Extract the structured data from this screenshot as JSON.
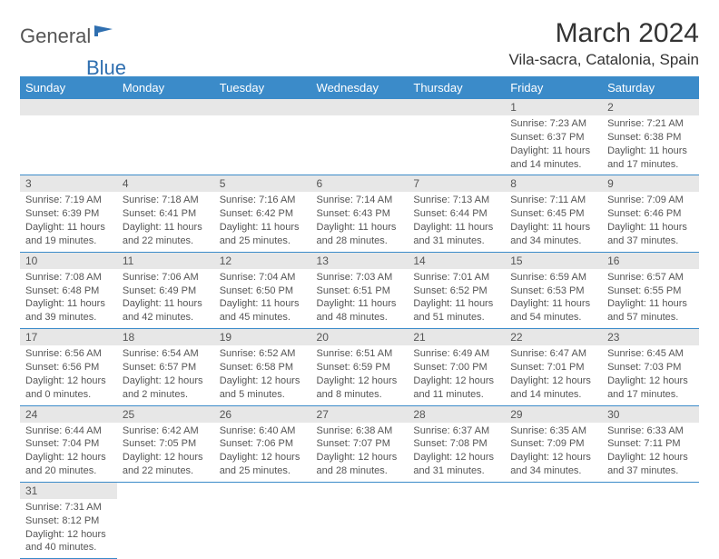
{
  "logo": {
    "part1": "General",
    "part2": "Blue"
  },
  "title": "March 2024",
  "location": "Vila-sacra, Catalonia, Spain",
  "colors": {
    "header_bg": "#3b8bc9",
    "header_text": "#ffffff",
    "daynum_bg": "#e7e7e7",
    "row_border": "#3b8bc9",
    "logo_blue": "#2f6fb0",
    "text": "#555555"
  },
  "day_headers": [
    "Sunday",
    "Monday",
    "Tuesday",
    "Wednesday",
    "Thursday",
    "Friday",
    "Saturday"
  ],
  "weeks": [
    [
      null,
      null,
      null,
      null,
      null,
      {
        "n": "1",
        "sr": "7:23 AM",
        "ss": "6:37 PM",
        "dl": "11 hours and 14 minutes."
      },
      {
        "n": "2",
        "sr": "7:21 AM",
        "ss": "6:38 PM",
        "dl": "11 hours and 17 minutes."
      }
    ],
    [
      {
        "n": "3",
        "sr": "7:19 AM",
        "ss": "6:39 PM",
        "dl": "11 hours and 19 minutes."
      },
      {
        "n": "4",
        "sr": "7:18 AM",
        "ss": "6:41 PM",
        "dl": "11 hours and 22 minutes."
      },
      {
        "n": "5",
        "sr": "7:16 AM",
        "ss": "6:42 PM",
        "dl": "11 hours and 25 minutes."
      },
      {
        "n": "6",
        "sr": "7:14 AM",
        "ss": "6:43 PM",
        "dl": "11 hours and 28 minutes."
      },
      {
        "n": "7",
        "sr": "7:13 AM",
        "ss": "6:44 PM",
        "dl": "11 hours and 31 minutes."
      },
      {
        "n": "8",
        "sr": "7:11 AM",
        "ss": "6:45 PM",
        "dl": "11 hours and 34 minutes."
      },
      {
        "n": "9",
        "sr": "7:09 AM",
        "ss": "6:46 PM",
        "dl": "11 hours and 37 minutes."
      }
    ],
    [
      {
        "n": "10",
        "sr": "7:08 AM",
        "ss": "6:48 PM",
        "dl": "11 hours and 39 minutes."
      },
      {
        "n": "11",
        "sr": "7:06 AM",
        "ss": "6:49 PM",
        "dl": "11 hours and 42 minutes."
      },
      {
        "n": "12",
        "sr": "7:04 AM",
        "ss": "6:50 PM",
        "dl": "11 hours and 45 minutes."
      },
      {
        "n": "13",
        "sr": "7:03 AM",
        "ss": "6:51 PM",
        "dl": "11 hours and 48 minutes."
      },
      {
        "n": "14",
        "sr": "7:01 AM",
        "ss": "6:52 PM",
        "dl": "11 hours and 51 minutes."
      },
      {
        "n": "15",
        "sr": "6:59 AM",
        "ss": "6:53 PM",
        "dl": "11 hours and 54 minutes."
      },
      {
        "n": "16",
        "sr": "6:57 AM",
        "ss": "6:55 PM",
        "dl": "11 hours and 57 minutes."
      }
    ],
    [
      {
        "n": "17",
        "sr": "6:56 AM",
        "ss": "6:56 PM",
        "dl": "12 hours and 0 minutes."
      },
      {
        "n": "18",
        "sr": "6:54 AM",
        "ss": "6:57 PM",
        "dl": "12 hours and 2 minutes."
      },
      {
        "n": "19",
        "sr": "6:52 AM",
        "ss": "6:58 PM",
        "dl": "12 hours and 5 minutes."
      },
      {
        "n": "20",
        "sr": "6:51 AM",
        "ss": "6:59 PM",
        "dl": "12 hours and 8 minutes."
      },
      {
        "n": "21",
        "sr": "6:49 AM",
        "ss": "7:00 PM",
        "dl": "12 hours and 11 minutes."
      },
      {
        "n": "22",
        "sr": "6:47 AM",
        "ss": "7:01 PM",
        "dl": "12 hours and 14 minutes."
      },
      {
        "n": "23",
        "sr": "6:45 AM",
        "ss": "7:03 PM",
        "dl": "12 hours and 17 minutes."
      }
    ],
    [
      {
        "n": "24",
        "sr": "6:44 AM",
        "ss": "7:04 PM",
        "dl": "12 hours and 20 minutes."
      },
      {
        "n": "25",
        "sr": "6:42 AM",
        "ss": "7:05 PM",
        "dl": "12 hours and 22 minutes."
      },
      {
        "n": "26",
        "sr": "6:40 AM",
        "ss": "7:06 PM",
        "dl": "12 hours and 25 minutes."
      },
      {
        "n": "27",
        "sr": "6:38 AM",
        "ss": "7:07 PM",
        "dl": "12 hours and 28 minutes."
      },
      {
        "n": "28",
        "sr": "6:37 AM",
        "ss": "7:08 PM",
        "dl": "12 hours and 31 minutes."
      },
      {
        "n": "29",
        "sr": "6:35 AM",
        "ss": "7:09 PM",
        "dl": "12 hours and 34 minutes."
      },
      {
        "n": "30",
        "sr": "6:33 AM",
        "ss": "7:11 PM",
        "dl": "12 hours and 37 minutes."
      }
    ],
    [
      {
        "n": "31",
        "sr": "7:31 AM",
        "ss": "8:12 PM",
        "dl": "12 hours and 40 minutes."
      },
      null,
      null,
      null,
      null,
      null,
      null
    ]
  ],
  "labels": {
    "sunrise": "Sunrise:",
    "sunset": "Sunset:",
    "daylight": "Daylight:"
  }
}
